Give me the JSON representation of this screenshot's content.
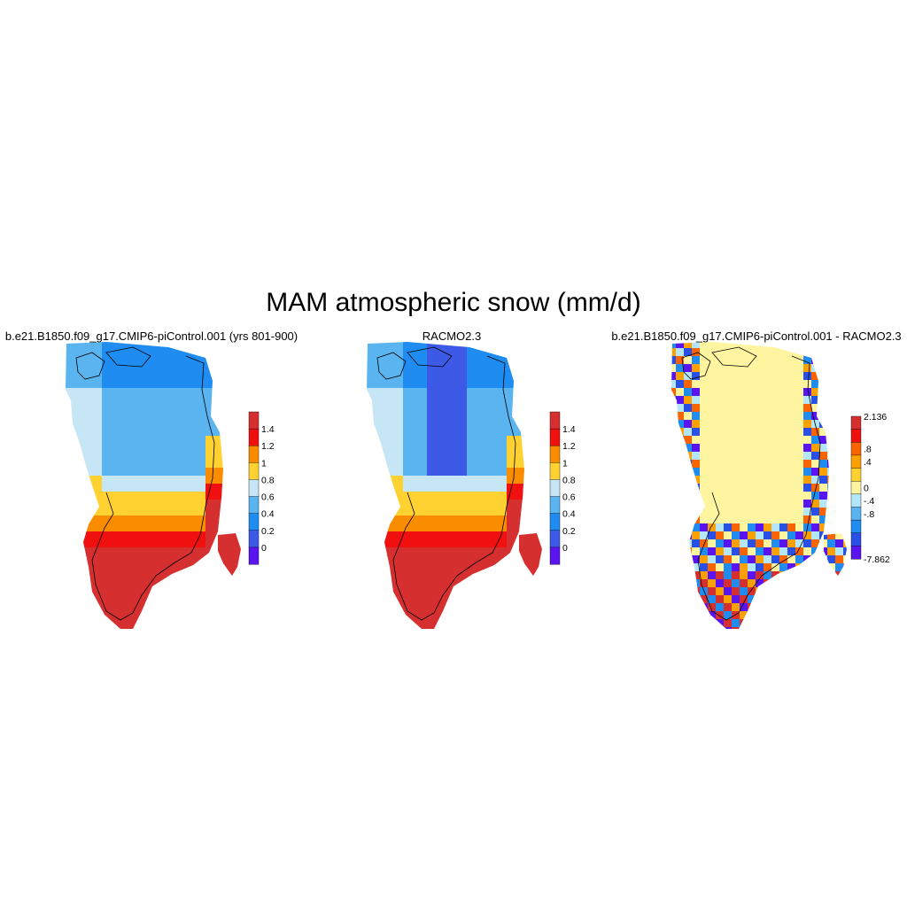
{
  "title": "MAM atmospheric snow (mm/d)",
  "panels": [
    {
      "title": "b.e21.B1850.f09_g17.CMIP6-piControl.001 (yrs 801-900)",
      "colorbar": {
        "labels": [
          "1.4",
          "1.2",
          "1",
          "0.8",
          "0.6",
          "0.4",
          "0.2",
          "0"
        ],
        "colors": [
          "#d62f2f",
          "#f01010",
          "#fa8c00",
          "#ffd232",
          "#c6e6f5",
          "#5ab4f0",
          "#1e8cf0",
          "#3c5ae6",
          "#5a14f0"
        ]
      }
    },
    {
      "title": "RACMO2.3",
      "colorbar": {
        "labels": [
          "1.4",
          "1.2",
          "1",
          "0.8",
          "0.6",
          "0.4",
          "0.2",
          "0"
        ],
        "colors": [
          "#d62f2f",
          "#f01010",
          "#fa8c00",
          "#ffd232",
          "#c6e6f5",
          "#5ab4f0",
          "#1e8cf0",
          "#3c5ae6",
          "#5a14f0"
        ]
      }
    },
    {
      "title": "b.e21.B1850.f09_g17.CMIP6-piControl.001 - RACMO2.3",
      "colorbar": {
        "labels": [
          "2.136",
          ".8",
          ".4",
          "0",
          "-.4",
          "-.8",
          "-7.862"
        ],
        "colors": [
          "#d62f2f",
          "#f01010",
          "#fa6400",
          "#faa000",
          "#ffd232",
          "#fff5a0",
          "#b4e6fa",
          "#5ab4f0",
          "#1e8cf0",
          "#2850e6",
          "#5a14f0"
        ]
      }
    }
  ]
}
